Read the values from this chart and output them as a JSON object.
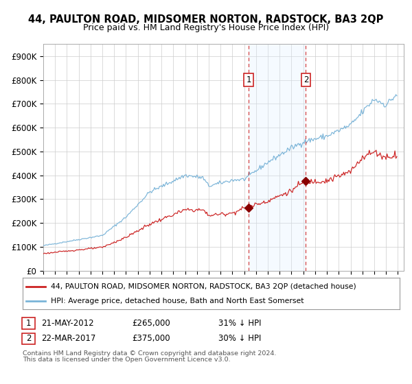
{
  "title": "44, PAULTON ROAD, MIDSOMER NORTON, RADSTOCK, BA3 2QP",
  "subtitle": "Price paid vs. HM Land Registry's House Price Index (HPI)",
  "legend_line1": "44, PAULTON ROAD, MIDSOMER NORTON, RADSTOCK, BA3 2QP (detached house)",
  "legend_line2": "HPI: Average price, detached house, Bath and North East Somerset",
  "footnote1": "Contains HM Land Registry data © Crown copyright and database right 2024.",
  "footnote2": "This data is licensed under the Open Government Licence v3.0.",
  "annotation1_label": "1",
  "annotation1_date": "21-MAY-2012",
  "annotation1_price": "£265,000",
  "annotation1_hpi_pct": "31% ↓ HPI",
  "annotation1_year_decimal": 2012.38,
  "annotation1_value": 265000,
  "annotation2_label": "2",
  "annotation2_date": "22-MAR-2017",
  "annotation2_price": "£375,000",
  "annotation2_hpi_pct": "30% ↓ HPI",
  "annotation2_year_decimal": 2017.22,
  "annotation2_value": 375000,
  "hpi_color": "#7ab4d8",
  "price_color": "#cc2222",
  "marker_color": "#880000",
  "shade_color": "#ddeeff",
  "vline_color": "#cc2222",
  "grid_color": "#cccccc",
  "bg_color": "#ffffff",
  "ylim": [
    0,
    950000
  ],
  "yticks": [
    0,
    100000,
    200000,
    300000,
    400000,
    500000,
    600000,
    700000,
    800000,
    900000
  ],
  "ytick_labels": [
    "£0",
    "£100K",
    "£200K",
    "£300K",
    "£400K",
    "£500K",
    "£600K",
    "£700K",
    "£800K",
    "£900K"
  ],
  "xlim_start": 1995.0,
  "xlim_end": 2025.5,
  "xticks": [
    1995,
    1996,
    1997,
    1998,
    1999,
    2000,
    2001,
    2002,
    2003,
    2004,
    2005,
    2006,
    2007,
    2008,
    2009,
    2010,
    2011,
    2012,
    2013,
    2014,
    2015,
    2016,
    2017,
    2018,
    2019,
    2020,
    2021,
    2022,
    2023,
    2024,
    2025
  ]
}
